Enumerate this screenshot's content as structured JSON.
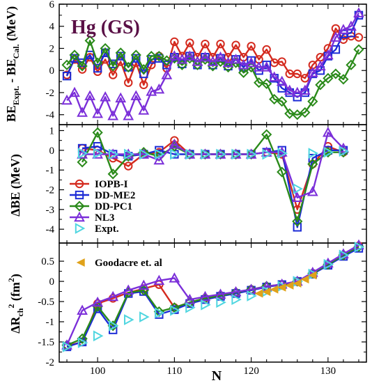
{
  "figure": {
    "annotation": "Hg (GS)",
    "annotation_color": "#5a1046",
    "x_label": "N",
    "ylabel_top": "BE",
    "ylabel_top_sub1": "Expt.",
    "ylabel_top_mid": " - BE",
    "ylabel_top_sub2": "Cal.",
    "ylabel_top_unit": " (MeV)",
    "ylabel_mid": "ΔBE (MeV)",
    "ylabel_bot_main": "ΔR",
    "ylabel_bot_sub": "ch",
    "ylabel_bot_sup": "2",
    "ylabel_bot_unit": " (fm",
    "ylabel_bot_unit_sup": "2",
    "ylabel_bot_unit_close": ")"
  },
  "chart_data": [
    {
      "type": "line",
      "panel": "top",
      "xlim": [
        95,
        135
      ],
      "ylim": [
        -4.9,
        6
      ],
      "x_ticks": [
        100,
        110,
        120,
        130
      ],
      "y_ticks": [
        -4,
        -2,
        0,
        2,
        4,
        6
      ],
      "series": [
        {
          "name": "IOPB-I",
          "color": "#d42a1e",
          "marker": "circle",
          "x": [
            96,
            97,
            98,
            99,
            100,
            101,
            102,
            103,
            104,
            105,
            106,
            107,
            108,
            109,
            110,
            111,
            112,
            113,
            114,
            115,
            116,
            117,
            118,
            119,
            120,
            121,
            122,
            123,
            124,
            125,
            126,
            127,
            128,
            129,
            130,
            131,
            132,
            133,
            134
          ],
          "y": [
            -0.4,
            1.0,
            0.1,
            1.2,
            -0.1,
            1.0,
            -0.4,
            0.8,
            -1.1,
            0.7,
            -1.3,
            0.5,
            1.3,
            0.2,
            2.6,
            1.3,
            2.5,
            1.2,
            2.4,
            1.2,
            2.4,
            1.2,
            2.3,
            1.2,
            2.2,
            1.0,
            1.9,
            0.7,
            0.8,
            -0.3,
            -0.3,
            -0.7,
            0.5,
            1.2,
            2.0,
            3.8,
            2.8,
            3.1,
            3.0
          ]
        },
        {
          "name": "DD-ME2",
          "color": "#1c2bd6",
          "marker": "square",
          "x": [
            96,
            97,
            98,
            99,
            100,
            101,
            102,
            103,
            104,
            105,
            106,
            107,
            108,
            109,
            110,
            111,
            112,
            113,
            114,
            115,
            116,
            117,
            118,
            119,
            120,
            121,
            122,
            123,
            124,
            125,
            126,
            127,
            128,
            129,
            130,
            131,
            132,
            133,
            134
          ],
          "y": [
            -0.5,
            1.1,
            0.7,
            1.4,
            0.2,
            1.6,
            0.6,
            1.3,
            0.3,
            1.1,
            -0.3,
            1.0,
            1.1,
            0.5,
            1.2,
            0.6,
            1.3,
            0.5,
            1.2,
            0.5,
            1.1,
            0.4,
            1.0,
            0.3,
            0.9,
            0.0,
            0.5,
            -0.7,
            -1.6,
            -2.0,
            -2.4,
            -2.0,
            -0.3,
            0.0,
            1.3,
            1.9,
            3.3,
            3.4,
            5.0
          ]
        },
        {
          "name": "DD-PC1",
          "color": "#2a8a1a",
          "marker": "diamond",
          "x": [
            96,
            97,
            98,
            99,
            100,
            101,
            102,
            103,
            104,
            105,
            106,
            107,
            108,
            109,
            110,
            111,
            112,
            113,
            114,
            115,
            116,
            117,
            118,
            119,
            120,
            121,
            122,
            123,
            124,
            125,
            126,
            127,
            128,
            129,
            130,
            131,
            132,
            133,
            134
          ],
          "y": [
            0.5,
            1.4,
            0.4,
            2.7,
            0.7,
            2.0,
            0.4,
            1.6,
            0.3,
            1.4,
            0.1,
            1.3,
            1.3,
            0.9,
            1.1,
            0.5,
            1.1,
            0.5,
            1.0,
            0.4,
            0.8,
            0.3,
            0.7,
            -0.2,
            0.3,
            -1.1,
            -1.2,
            -2.6,
            -2.8,
            -3.9,
            -4.0,
            -3.8,
            -2.8,
            -1.3,
            -0.7,
            -0.3,
            -0.8,
            0.5,
            1.9
          ]
        },
        {
          "name": "NL3",
          "color": "#7b2fd9",
          "marker": "triangle",
          "x": [
            96,
            97,
            98,
            99,
            100,
            101,
            102,
            103,
            104,
            105,
            106,
            107,
            108,
            109,
            110,
            111,
            112,
            113,
            114,
            115,
            116,
            117,
            118,
            119,
            120,
            121,
            122,
            123,
            124,
            125,
            126,
            127,
            128,
            129,
            130,
            131,
            132,
            133,
            134
          ],
          "y": [
            -2.7,
            -2.0,
            -3.8,
            -2.3,
            -3.9,
            -2.4,
            -4.1,
            -2.5,
            -4.1,
            -2.3,
            -3.6,
            -1.9,
            -1.7,
            -0.4,
            1.3,
            1.0,
            1.3,
            0.8,
            1.2,
            0.8,
            1.2,
            0.7,
            1.0,
            0.5,
            0.7,
            0.3,
            0.3,
            -0.6,
            -1.0,
            -1.8,
            -2.0,
            -1.8,
            -0.2,
            0.4,
            1.4,
            3.0,
            3.7,
            4.0,
            5.2
          ]
        }
      ]
    },
    {
      "type": "line",
      "panel": "middle",
      "xlim": [
        95,
        135
      ],
      "ylim": [
        -4.7,
        1.3
      ],
      "x_ticks": [
        100,
        110,
        120,
        130
      ],
      "y_ticks": [
        -4,
        -3,
        -2,
        -1,
        0,
        1
      ],
      "series": [
        {
          "name": "IOPB-I",
          "color": "#d42a1e",
          "marker": "circle",
          "x": [
            98,
            100,
            102,
            104,
            106,
            108,
            110,
            112,
            114,
            116,
            118,
            120,
            122,
            124,
            126,
            128,
            130,
            132
          ],
          "y": [
            0.1,
            0.0,
            -0.4,
            -0.8,
            -0.2,
            -0.1,
            0.5,
            -0.2,
            -0.2,
            -0.2,
            -0.2,
            -0.2,
            -0.1,
            -0.2,
            -3.0,
            -0.7,
            0.2,
            -0.1
          ]
        },
        {
          "name": "DD-ME2",
          "color": "#1c2bd6",
          "marker": "square",
          "x": [
            98,
            100,
            102,
            104,
            106,
            108,
            110,
            112,
            114,
            116,
            118,
            120,
            122,
            124,
            126,
            128,
            130,
            132
          ],
          "y": [
            0.1,
            0.2,
            -0.2,
            -0.3,
            -0.2,
            0.0,
            -0.2,
            -0.2,
            -0.2,
            -0.2,
            -0.2,
            -0.2,
            -0.1,
            0.0,
            -3.9,
            -0.4,
            0.0,
            0.0
          ]
        },
        {
          "name": "DD-PC1",
          "color": "#2a8a1a",
          "marker": "diamond",
          "x": [
            98,
            100,
            102,
            104,
            106,
            108,
            110,
            112,
            114,
            116,
            118,
            120,
            122,
            124,
            126,
            128,
            130,
            132
          ],
          "y": [
            -0.6,
            0.9,
            -1.2,
            -0.3,
            -0.1,
            -0.3,
            0.2,
            -0.2,
            -0.2,
            -0.2,
            -0.2,
            -0.2,
            0.8,
            -1.1,
            -3.6,
            -0.7,
            -0.1,
            -0.1
          ]
        },
        {
          "name": "NL3",
          "color": "#7b2fd9",
          "marker": "triangle",
          "x": [
            98,
            100,
            102,
            104,
            106,
            108,
            110,
            112,
            114,
            116,
            118,
            120,
            122,
            124,
            126,
            128,
            130,
            132
          ],
          "y": [
            -0.2,
            -0.2,
            -0.2,
            -0.2,
            -0.2,
            -0.5,
            0.3,
            -0.2,
            -0.2,
            -0.2,
            -0.2,
            -0.2,
            -0.1,
            -0.1,
            -2.4,
            -2.1,
            0.9,
            0.1
          ]
        },
        {
          "name": "Expt.",
          "color": "#4fd6e0",
          "marker": "triangle-right",
          "line": false,
          "x": [
            98,
            100,
            102,
            104,
            106,
            108,
            110,
            112,
            114,
            116,
            118,
            120,
            122,
            124,
            126,
            128,
            130,
            132
          ],
          "y": [
            -0.15,
            -0.15,
            -0.2,
            -0.2,
            -0.2,
            -0.2,
            -0.2,
            -0.2,
            -0.2,
            -0.2,
            -0.2,
            -0.2,
            -0.2,
            -0.15,
            -1.95,
            -0.15,
            -0.1,
            -0.05
          ]
        }
      ]
    },
    {
      "type": "line",
      "panel": "bottom",
      "xlim": [
        95,
        135
      ],
      "ylim": [
        -2,
        0.95
      ],
      "x_ticks": [
        100,
        110,
        120,
        130
      ],
      "y_ticks": [
        -2,
        -1.5,
        -1,
        -0.5,
        0,
        0.5
      ],
      "series": [
        {
          "name": "IOPB-I",
          "color": "#d42a1e",
          "marker": "circle",
          "x": [
            96,
            98,
            100,
            102,
            104,
            106,
            108,
            110,
            112,
            114,
            116,
            118,
            120,
            122,
            124,
            126,
            128,
            130,
            132,
            134
          ],
          "y": [
            -1.6,
            -1.5,
            -0.55,
            -0.42,
            -0.28,
            -0.18,
            -0.08,
            -0.65,
            -0.52,
            -0.42,
            -0.35,
            -0.28,
            -0.2,
            -0.13,
            -0.08,
            0.0,
            0.2,
            0.42,
            0.65,
            0.88
          ]
        },
        {
          "name": "DD-ME2",
          "color": "#1c2bd6",
          "marker": "square",
          "x": [
            96,
            98,
            100,
            102,
            104,
            106,
            108,
            110,
            112,
            114,
            116,
            118,
            120,
            122,
            124,
            126,
            128,
            130,
            132,
            134
          ],
          "y": [
            -1.62,
            -1.5,
            -0.68,
            -1.2,
            -0.3,
            -0.25,
            -0.82,
            -0.7,
            -0.55,
            -0.45,
            -0.37,
            -0.3,
            -0.22,
            -0.14,
            -0.08,
            0.0,
            0.18,
            0.4,
            0.62,
            0.82
          ]
        },
        {
          "name": "DD-PC1",
          "color": "#2a8a1a",
          "marker": "diamond",
          "x": [
            96,
            98,
            100,
            102,
            104,
            106,
            108,
            110,
            112,
            114,
            116,
            118,
            120,
            122,
            124,
            126,
            128,
            130,
            132,
            134
          ],
          "y": [
            -1.58,
            -1.42,
            -0.62,
            -1.1,
            -0.28,
            -0.22,
            -0.75,
            -0.65,
            -0.52,
            -0.42,
            -0.35,
            -0.27,
            -0.2,
            -0.12,
            -0.08,
            0.0,
            0.2,
            0.42,
            0.65,
            0.86
          ]
        },
        {
          "name": "NL3",
          "color": "#7b2fd9",
          "marker": "triangle",
          "x": [
            96,
            98,
            100,
            102,
            104,
            106,
            108,
            110,
            112,
            114,
            116,
            118,
            120,
            122,
            124,
            126,
            128,
            130,
            132,
            134
          ],
          "y": [
            -1.58,
            -0.72,
            -0.52,
            -0.38,
            -0.22,
            -0.1,
            0.02,
            0.08,
            -0.45,
            -0.38,
            -0.32,
            -0.26,
            -0.2,
            -0.13,
            -0.07,
            0.0,
            0.22,
            0.45,
            0.68,
            0.9
          ]
        },
        {
          "name": "Expt.",
          "color": "#4fd6e0",
          "marker": "triangle-right",
          "line": false,
          "x": [
            96,
            98,
            100,
            102,
            104,
            106,
            108,
            110,
            112,
            114,
            116,
            118,
            120,
            122,
            124,
            126,
            128,
            130,
            132,
            134
          ],
          "y": [
            -1.62,
            -1.52,
            -1.35,
            -1.1,
            -0.95,
            -0.88,
            -0.78,
            -0.72,
            -0.65,
            -0.58,
            -0.52,
            -0.45,
            -0.36,
            -0.25,
            -0.12,
            0.0,
            0.18,
            0.42,
            0.65,
            0.85
          ]
        },
        {
          "name": "Goodacre et. al",
          "color": "#e0a21a",
          "marker": "triangle-left",
          "line": false,
          "x": [
            121,
            122,
            123,
            124,
            125,
            126,
            127,
            128
          ],
          "y": [
            -0.3,
            -0.26,
            -0.2,
            -0.15,
            -0.1,
            -0.05,
            0.05,
            0.15
          ]
        }
      ]
    }
  ]
}
